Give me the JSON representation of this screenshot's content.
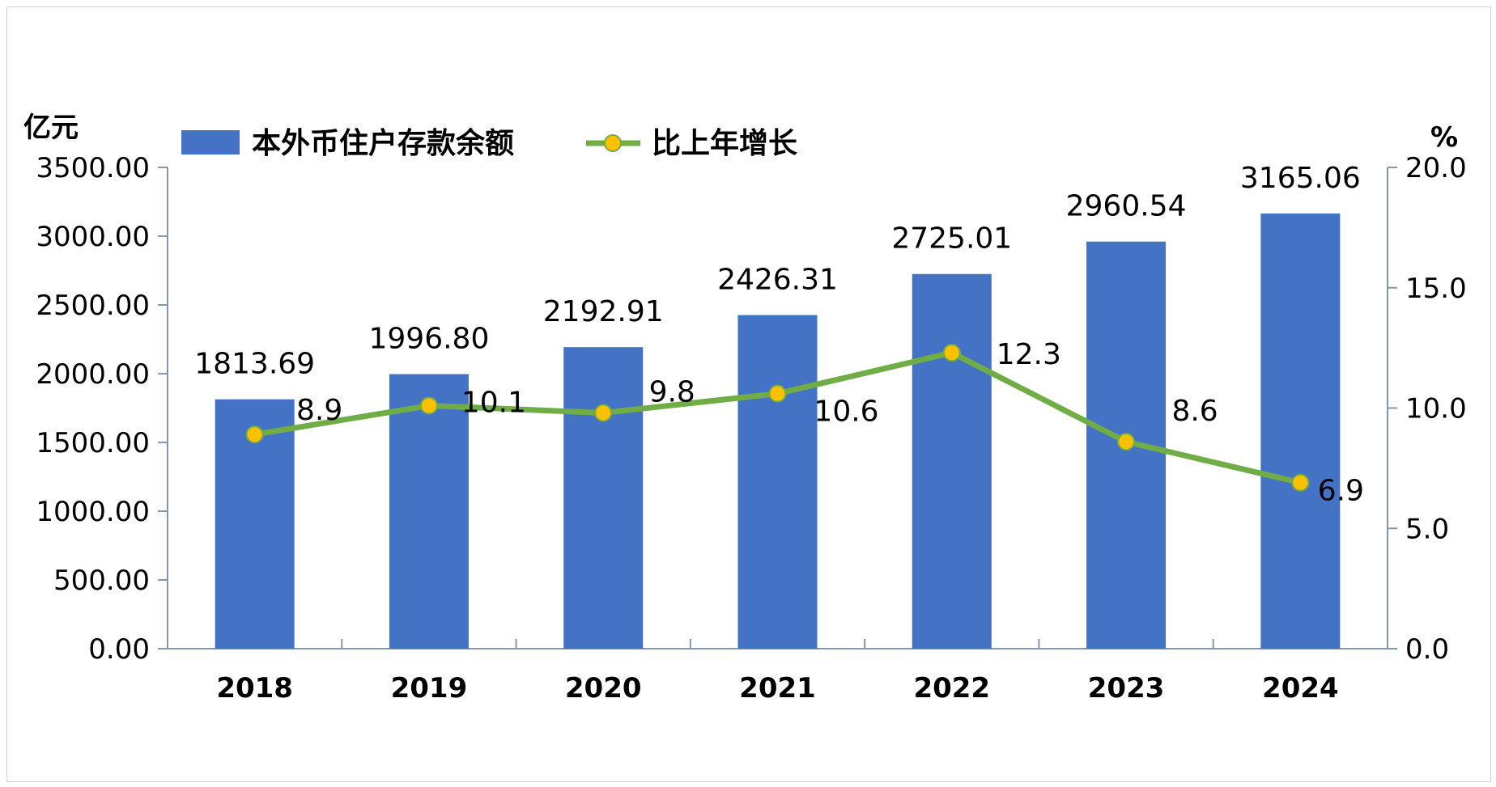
{
  "chart_data": {
    "type": "bar+line",
    "categories": [
      "2018",
      "2019",
      "2020",
      "2021",
      "2022",
      "2023",
      "2024"
    ],
    "series": [
      {
        "name": "本外币住户存款余额",
        "type": "bar",
        "axis": "left",
        "values": [
          1813.69,
          1996.8,
          2192.91,
          2426.31,
          2725.01,
          2960.54,
          3165.06
        ],
        "labels": [
          "1813.69",
          "1996.80",
          "2192.91",
          "2426.31",
          "2725.01",
          "2960.54",
          "3165.06"
        ]
      },
      {
        "name": "比上年增长",
        "type": "line",
        "axis": "right",
        "values": [
          8.9,
          10.1,
          9.8,
          10.6,
          12.3,
          8.6,
          6.9
        ],
        "labels": [
          "8.9",
          "10.1",
          "9.8",
          "10.6",
          "12.3",
          "8.6",
          "6.9"
        ]
      }
    ],
    "y_left": {
      "unit": "亿元",
      "range": [
        0,
        3500
      ],
      "ticks": [
        "0.00",
        "500.00",
        "1000.00",
        "1500.00",
        "2000.00",
        "2500.00",
        "3000.00",
        "3500.00"
      ]
    },
    "y_right": {
      "unit": "%",
      "range": [
        0,
        20
      ],
      "ticks": [
        "0.0",
        "5.0",
        "10.0",
        "15.0",
        "20.0"
      ]
    },
    "legend_position": "top-left",
    "grid": false,
    "colors": {
      "bar": "#4472C4",
      "line": "#70AD47",
      "marker": "#FFC000",
      "axis": "#8497B0"
    }
  }
}
